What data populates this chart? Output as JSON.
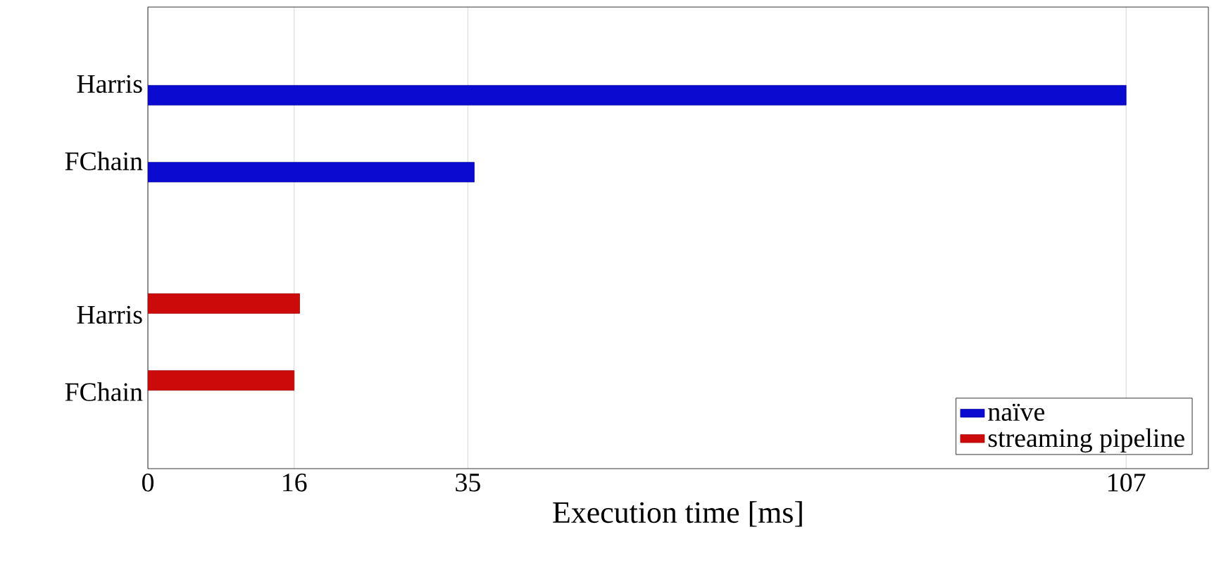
{
  "chart_data": {
    "type": "bar",
    "orientation": "horizontal",
    "xlabel": "Execution time [ms]",
    "categories": [
      "Harris",
      "FChain",
      null,
      "Harris",
      "FChain"
    ],
    "series": [
      {
        "name": "naïve",
        "color": "#0a0ad0",
        "values": [
          107,
          35.7,
          null,
          null,
          null
        ]
      },
      {
        "name": "streaming pipeline",
        "color": "#cc0a0a",
        "values": [
          null,
          null,
          null,
          16.6,
          16
        ]
      }
    ],
    "xlim": [
      0,
      116
    ],
    "xticks": [
      0,
      16,
      35,
      107
    ],
    "grid": "x",
    "legend": "bottom right"
  }
}
